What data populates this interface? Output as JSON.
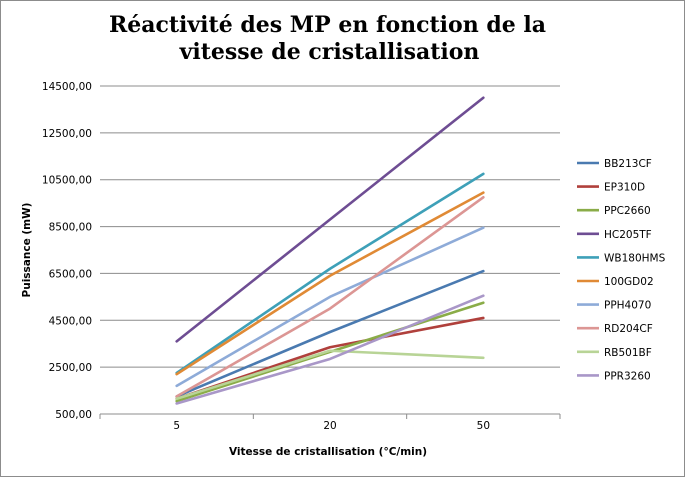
{
  "chart_data": {
    "type": "line",
    "title_line1": "Réactivité des MP en fonction de la",
    "title_line2": "vitesse de cristallisation",
    "xlabel": "Vitesse de cristallisation   (°C/min)",
    "ylabel": "Puissance  (mW)",
    "categories": [
      "5",
      "20",
      "50"
    ],
    "yticks": [
      "500,00",
      "2500,00",
      "4500,00",
      "6500,00",
      "8500,00",
      "10500,00",
      "12500,00",
      "14500,00"
    ],
    "ylim": [
      500,
      14500
    ],
    "grid": true,
    "legend_position": "right",
    "series": [
      {
        "name": "BB213CF",
        "color": "#4a7ab0",
        "values": [
          1250,
          4000,
          6600
        ]
      },
      {
        "name": "EP310D",
        "color": "#b0403c",
        "values": [
          1150,
          3350,
          4600
        ]
      },
      {
        "name": "PPC2660",
        "color": "#8aac48",
        "values": [
          1050,
          3150,
          5250
        ]
      },
      {
        "name": "HC205TF",
        "color": "#6e4d93",
        "values": [
          3600,
          8800,
          14000
        ]
      },
      {
        "name": "WB180HMS",
        "color": "#3ea0b8",
        "values": [
          2250,
          6700,
          10750
        ]
      },
      {
        "name": "100GD02",
        "color": "#e08a35",
        "values": [
          2200,
          6400,
          9950
        ]
      },
      {
        "name": "PPH4070",
        "color": "#8eabd8",
        "values": [
          1700,
          5500,
          8450
        ]
      },
      {
        "name": "RD204CF",
        "color": "#dc9694",
        "values": [
          1250,
          5000,
          9750
        ]
      },
      {
        "name": "RB501BF",
        "color": "#b8d496",
        "values": [
          1150,
          3200,
          2900
        ]
      },
      {
        "name": "PPR3260",
        "color": "#a997c8",
        "values": [
          950,
          2850,
          5550
        ]
      }
    ]
  }
}
